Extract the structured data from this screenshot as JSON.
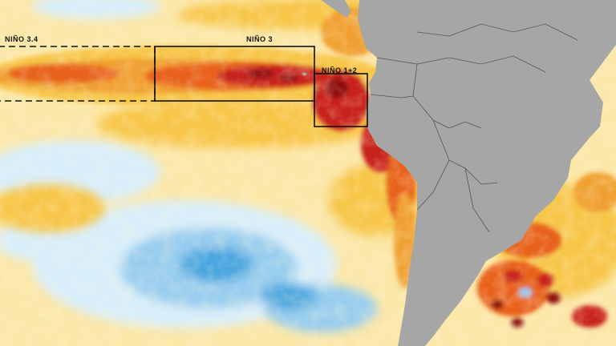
{
  "regions": [
    {
      "id": "nino34",
      "label": "NIÑO 3.4",
      "style": "dashed"
    },
    {
      "id": "nino3",
      "label": "NIÑO 3",
      "style": "solid"
    },
    {
      "id": "nino12",
      "label": "NIÑO 1+2",
      "style": "solid"
    }
  ],
  "colors": {
    "land": "#a6a6a6",
    "ocean_base": "#fbe7a8",
    "anomaly_warm_light": "#f7c64a",
    "anomaly_warm_mid": "#f0a030",
    "anomaly_warm_strong": "#e8621a",
    "anomaly_hot": "#c8201a",
    "anomaly_extreme": "#8c0f10",
    "anomaly_cool_light": "#d8eefa",
    "anomaly_cool_mid": "#98cdee",
    "anomaly_cold": "#4aa6e0",
    "box_stroke": "#111111"
  }
}
